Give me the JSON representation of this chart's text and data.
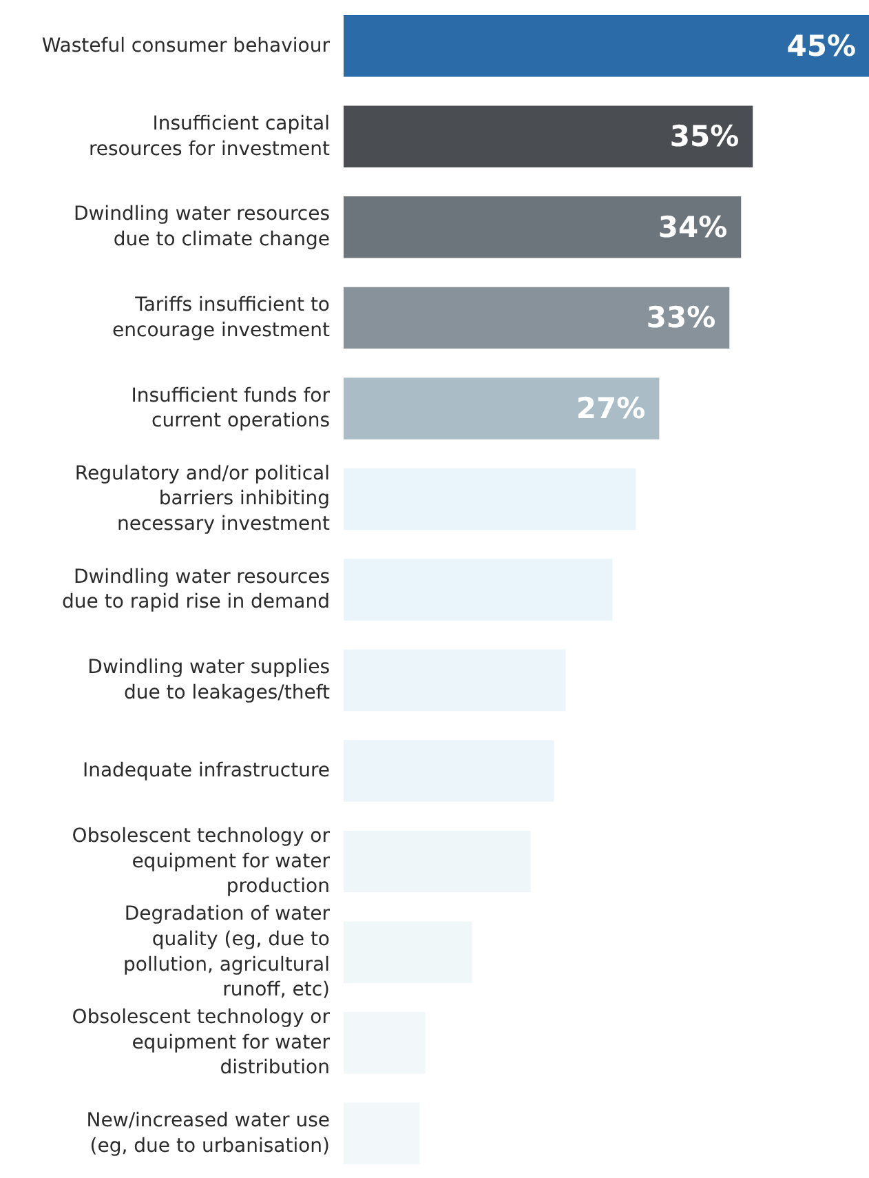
{
  "chart_data": {
    "type": "bar",
    "orientation": "horizontal",
    "categories": [
      "Wasteful consumer behaviour",
      "Insufficient capital resources for investment",
      "Dwindling water resources due to climate change",
      "Tariffs insufficient to encourage investment",
      "Insufficient funds for current operations",
      "Regulatory and/or political barriers inhibiting necessary investment",
      "Dwindling water resources due to rapid rise in demand",
      "Dwindling water supplies due to leakages/theft",
      "Inadequate infrastructure",
      "Obsolescent technology or equipment for water production",
      "Degradation of water quality (eg, due to pollution, agricultural runoff, etc)",
      "Obsolescent technology or equipment for water distribution",
      "New/increased water use (eg, due to urbanisation)"
    ],
    "values": [
      45,
      35,
      34,
      33,
      27,
      25,
      23,
      19,
      18,
      16,
      11,
      7,
      6.5
    ],
    "colors": [
      "#2b6ba8",
      "#4a4d51",
      "#6c757b",
      "#87929a",
      "#aabdc6",
      "#e9f5fa",
      "#e9f5fa",
      "#ecf6fa",
      "#ecf6fa",
      "#eef6f9",
      "#f0f7f9",
      "#f2f8fa",
      "#f2f8fa"
    ],
    "value_labels": [
      "45%",
      "35%",
      "34%",
      "33%",
      "27%",
      null,
      null,
      null,
      null,
      null,
      null,
      null,
      null
    ]
  }
}
